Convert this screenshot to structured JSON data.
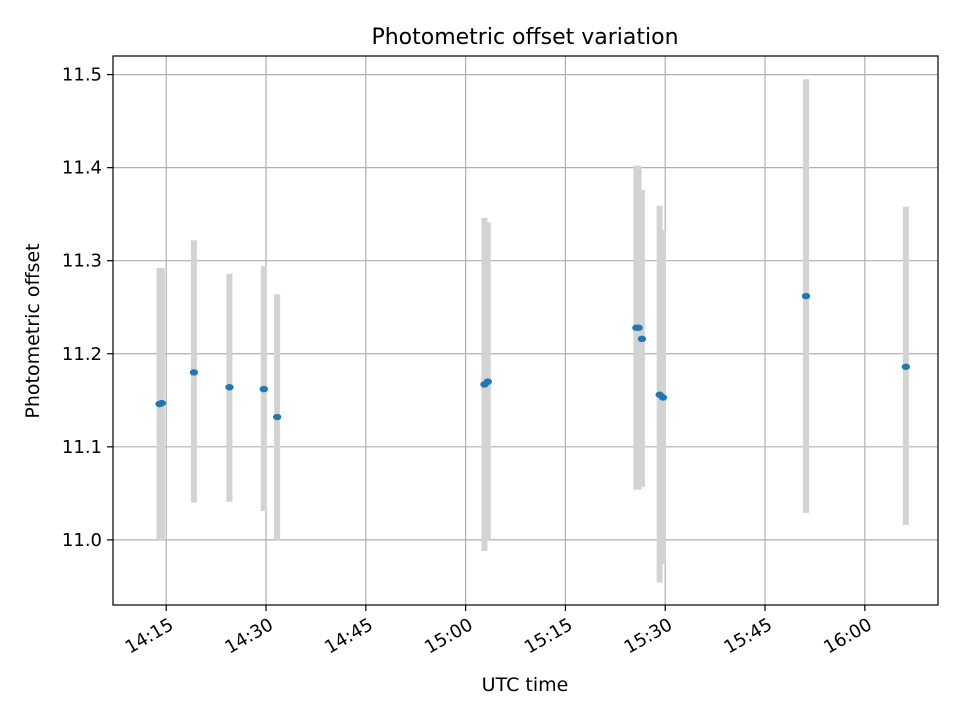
{
  "chart_data": {
    "type": "scatter",
    "title": "Photometric offset variation",
    "xlabel": "UTC time",
    "ylabel": "Photometric offset",
    "xlim": [
      "14:07",
      "16:11"
    ],
    "ylim": [
      10.93,
      11.52
    ],
    "grid": true,
    "x_ticks": [
      "14:15",
      "14:30",
      "14:45",
      "15:00",
      "15:15",
      "15:30",
      "15:45",
      "16:00"
    ],
    "y_ticks": [
      "11.0",
      "11.1",
      "11.2",
      "11.3",
      "11.4",
      "11.5"
    ],
    "series": [
      {
        "marker_color": "#1f77b4",
        "errorbar_color": "#d3d3d3",
        "points": [
          {
            "x": "14:14:00",
            "y": 11.146,
            "err_low": 11.0,
            "err_high": 11.292
          },
          {
            "x": "14:14:20",
            "y": 11.147,
            "err_low": 11.0,
            "err_high": 11.292
          },
          {
            "x": "14:19:10",
            "y": 11.18,
            "err_low": 11.04,
            "err_high": 11.322
          },
          {
            "x": "14:24:30",
            "y": 11.164,
            "err_low": 11.041,
            "err_high": 11.286
          },
          {
            "x": "14:29:40",
            "y": 11.162,
            "err_low": 11.031,
            "err_high": 11.294
          },
          {
            "x": "14:31:40",
            "y": 11.132,
            "err_low": 11.0,
            "err_high": 11.264
          },
          {
            "x": "15:02:50",
            "y": 11.167,
            "err_low": 10.988,
            "err_high": 11.346
          },
          {
            "x": "15:03:20",
            "y": 11.17,
            "err_low": 11.0,
            "err_high": 11.341
          },
          {
            "x": "15:25:40",
            "y": 11.228,
            "err_low": 11.054,
            "err_high": 11.402
          },
          {
            "x": "15:26:00",
            "y": 11.228,
            "err_low": 11.054,
            "err_high": 11.402
          },
          {
            "x": "15:26:30",
            "y": 11.216,
            "err_low": 11.057,
            "err_high": 11.376
          },
          {
            "x": "15:29:10",
            "y": 11.156,
            "err_low": 10.954,
            "err_high": 11.359
          },
          {
            "x": "15:29:40",
            "y": 11.153,
            "err_low": 10.974,
            "err_high": 11.333
          },
          {
            "x": "15:51:10",
            "y": 11.262,
            "err_low": 11.029,
            "err_high": 11.495
          },
          {
            "x": "16:06:10",
            "y": 11.186,
            "err_low": 11.016,
            "err_high": 11.358
          }
        ]
      }
    ]
  }
}
